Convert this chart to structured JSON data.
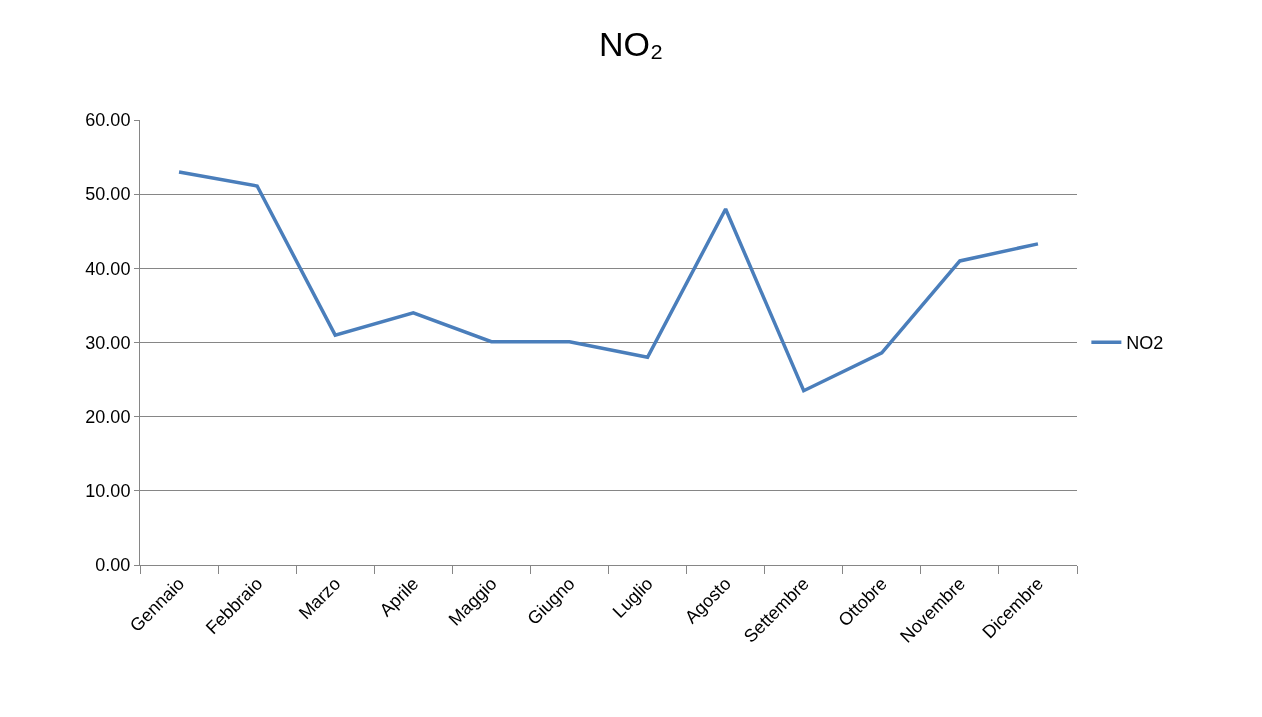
{
  "chart_data": {
    "type": "line",
    "title": "NO₂",
    "categories": [
      "Gennaio",
      "Febbraio",
      "Marzo",
      "Aprile",
      "Maggio",
      "Giugno",
      "Luglio",
      "Agosto",
      "Settembre",
      "Ottobre",
      "Novembre",
      "Dicembre"
    ],
    "series": [
      {
        "name": "NO2",
        "color": "#4a7ebb",
        "values": [
          53.0,
          51.1,
          31.0,
          34.0,
          30.1,
          30.1,
          28.0,
          48.0,
          23.5,
          28.6,
          41.0,
          43.3
        ]
      }
    ],
    "ylim": [
      0,
      60
    ],
    "yticks": [
      {
        "value": 0,
        "label": "0.00"
      },
      {
        "value": 10,
        "label": "10.00"
      },
      {
        "value": 20,
        "label": "20.00"
      },
      {
        "value": 30,
        "label": "30.00"
      },
      {
        "value": 40,
        "label": "40.00"
      },
      {
        "value": 50,
        "label": "50.00"
      },
      {
        "value": 60,
        "label": "60.00"
      }
    ],
    "grid": "y",
    "legend": "right",
    "line_style": "solid"
  }
}
